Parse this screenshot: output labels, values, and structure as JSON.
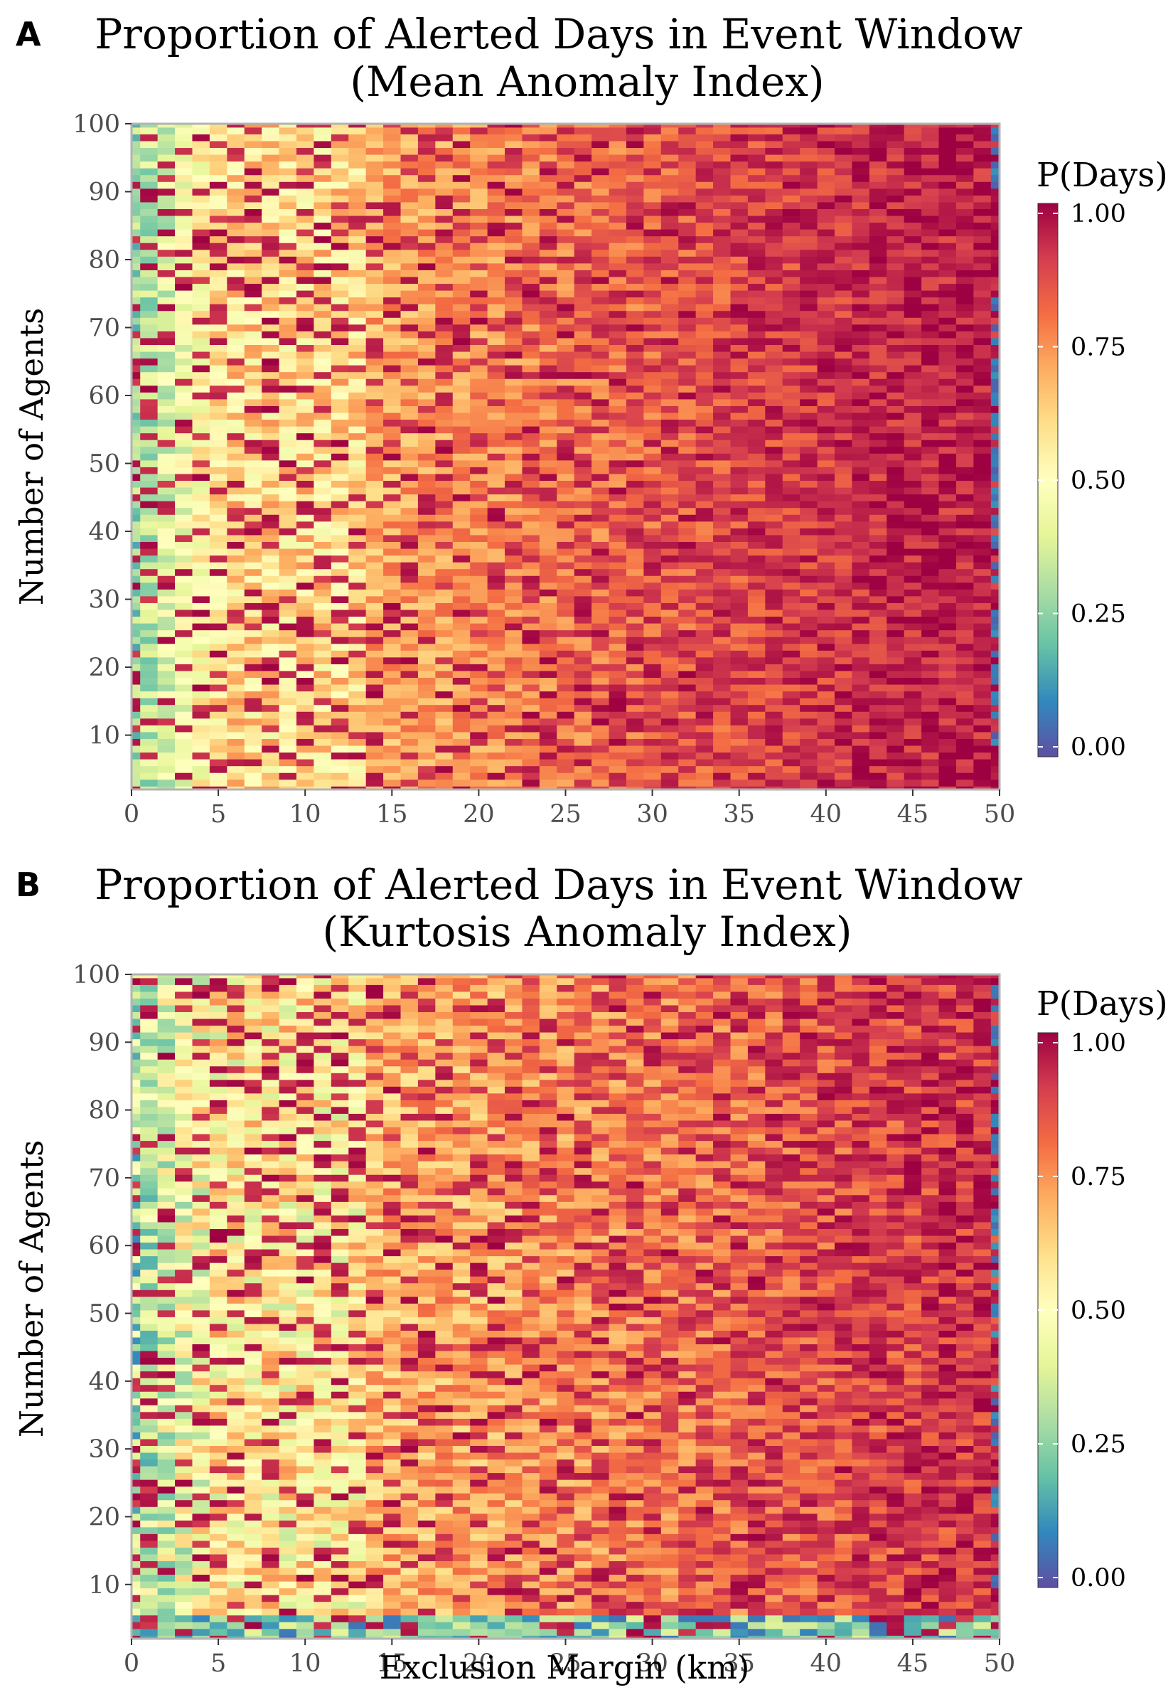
{
  "chart_data": [
    {
      "panel": "A",
      "type": "heatmap",
      "title": "Proportion of Alerted Days in Event Window",
      "subtitle": "(Mean Anomaly Index)",
      "xlabel": "",
      "ylabel": "Number of Agents",
      "x_ticks": [
        "0",
        "5",
        "10",
        "15",
        "20",
        "25",
        "30",
        "35",
        "40",
        "45",
        "50"
      ],
      "y_ticks": [
        "10",
        "20",
        "30",
        "40",
        "50",
        "60",
        "70",
        "80",
        "90",
        "100"
      ],
      "xlim": [
        0,
        50
      ],
      "ylim": [
        2,
        100
      ],
      "legend": {
        "title": "P(Days)",
        "position": "right",
        "labels": [
          "0.00",
          "0.25",
          "0.50",
          "0.75",
          "1.00"
        ],
        "range": [
          0,
          1
        ]
      },
      "colormap": "Spectral (reversed)",
      "grid": false,
      "trend": "low proportions (0-0.4) at exclusion margin 0-5 km rising to 0.8-1.0 at 30-50 km; column at 50 km low for most agent counts"
    },
    {
      "panel": "B",
      "type": "heatmap",
      "title": "Proportion of Alerted Days in Event Window",
      "subtitle": "(Kurtosis Anomaly Index)",
      "xlabel": "Exclusion Margin (km)",
      "ylabel": "Number of Agents",
      "x_ticks": [
        "0",
        "5",
        "10",
        "15",
        "20",
        "25",
        "30",
        "35",
        "40",
        "45",
        "50"
      ],
      "y_ticks": [
        "10",
        "20",
        "30",
        "40",
        "50",
        "60",
        "70",
        "80",
        "90",
        "100"
      ],
      "xlim": [
        0,
        50
      ],
      "ylim": [
        2,
        100
      ],
      "legend": {
        "title": "P(Days)",
        "position": "right",
        "labels": [
          "0.00",
          "0.25",
          "0.50",
          "0.75",
          "1.00"
        ],
        "range": [
          0,
          1
        ]
      },
      "colormap": "Spectral (reversed)",
      "grid": false,
      "trend": "low proportions at 0-5 km margin rising towards 0.8-1.0 at larger margins; bottom rows (2-6 agents) low across all margins"
    }
  ]
}
